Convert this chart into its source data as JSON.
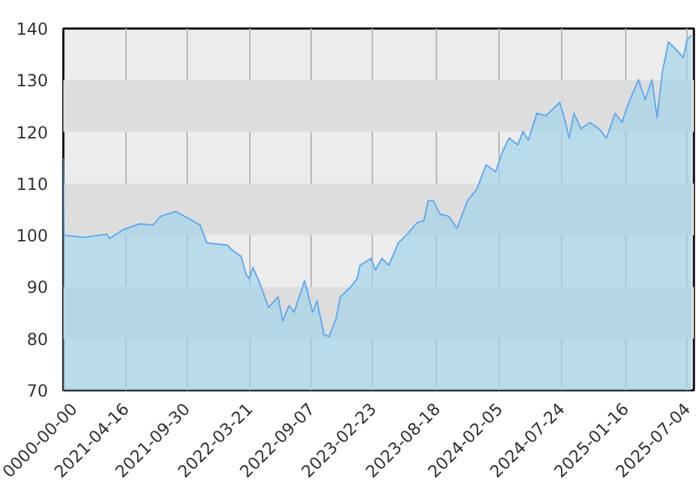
{
  "chart_data": {
    "type": "area",
    "xlim": [
      "2020-10-27",
      "2025-07-23"
    ],
    "ylim": [
      70,
      140
    ],
    "yticks": [
      70,
      80,
      90,
      100,
      110,
      120,
      130,
      140
    ],
    "xticks": [
      {
        "value": "2020-10-27",
        "label": "0000-00-00"
      },
      {
        "value": "2021-04-16",
        "label": "2021-04-16"
      },
      {
        "value": "2021-09-30",
        "label": "2021-09-30"
      },
      {
        "value": "2022-03-21",
        "label": "2022-03-21"
      },
      {
        "value": "2022-09-07",
        "label": "2022-09-07"
      },
      {
        "value": "2023-02-23",
        "label": "2023-02-23"
      },
      {
        "value": "2023-08-18",
        "label": "2023-08-18"
      },
      {
        "value": "2024-02-05",
        "label": "2024-02-05"
      },
      {
        "value": "2024-07-24",
        "label": "2024-07-24"
      },
      {
        "value": "2025-01-16",
        "label": "2025-01-16"
      },
      {
        "value": "2025-07-04",
        "label": "2025-07-04"
      }
    ],
    "grid": "x",
    "bands": [
      {
        "axis": "y",
        "from": 120,
        "to": 130,
        "color": "#dddddd"
      },
      {
        "axis": "y",
        "from": 100,
        "to": 110,
        "color": "#dddddd"
      },
      {
        "axis": "y",
        "from": 80,
        "to": 90,
        "color": "#dddddd"
      }
    ],
    "series": [
      {
        "color": "#5ba8f0",
        "x": [
          "2020-10-27",
          "2020-10-29",
          "2020-12-22",
          "2021-02-24",
          "2021-03-03",
          "2021-04-09",
          "2021-05-24",
          "2021-06-30",
          "2021-07-21",
          "2021-08-31",
          "2021-10-04",
          "2021-11-06",
          "2021-11-25",
          "2022-01-20",
          "2022-02-01",
          "2022-02-27",
          "2022-03-12",
          "2022-03-21",
          "2022-03-31",
          "2022-04-19",
          "2022-05-13",
          "2022-06-08",
          "2022-06-21",
          "2022-07-08",
          "2022-07-22",
          "2022-08-20",
          "2022-09-11",
          "2022-09-23",
          "2022-10-12",
          "2022-10-26",
          "2022-11-14",
          "2022-11-26",
          "2022-12-23",
          "2023-01-11",
          "2023-01-19",
          "2023-02-18",
          "2023-03-02",
          "2023-03-20",
          "2023-04-08",
          "2023-05-04",
          "2023-05-28",
          "2023-06-24",
          "2023-07-13",
          "2023-07-25",
          "2023-08-08",
          "2023-08-26",
          "2023-09-19",
          "2023-10-12",
          "2023-11-10",
          "2023-12-05",
          "2023-12-31",
          "2024-01-26",
          "2024-02-14",
          "2024-03-03",
          "2024-03-27",
          "2024-04-10",
          "2024-04-25",
          "2024-05-18",
          "2024-06-12",
          "2024-07-08",
          "2024-07-20",
          "2024-08-03",
          "2024-08-15",
          "2024-08-28",
          "2024-09-16",
          "2024-10-10",
          "2024-11-05",
          "2024-11-25",
          "2024-12-19",
          "2025-01-07",
          "2025-01-21",
          "2025-02-21",
          "2025-03-11",
          "2025-03-30",
          "2025-04-13",
          "2025-04-27",
          "2025-05-14",
          "2025-06-02",
          "2025-06-24",
          "2025-07-04",
          "2025-07-16"
        ],
        "values": [
          115,
          100,
          99.6,
          100.2,
          99.4,
          101.1,
          102.2,
          102,
          103.7,
          104.6,
          103.3,
          102,
          98.5,
          98.1,
          97.2,
          95.9,
          92.5,
          91.6,
          93.8,
          90.7,
          86.0,
          88.1,
          83.4,
          86.4,
          85.1,
          91.2,
          85.1,
          87.3,
          80.8,
          80.4,
          83.8,
          88.1,
          89.9,
          91.6,
          94.2,
          95.5,
          93.3,
          95.5,
          94.2,
          98.5,
          100.2,
          102.4,
          102.8,
          106.7,
          106.7,
          104.1,
          103.7,
          101.3,
          106.7,
          108.9,
          113.6,
          112.3,
          116.2,
          118.8,
          117.5,
          120.1,
          118.4,
          123.6,
          123.1,
          124.9,
          125.7,
          122.3,
          118.8,
          123.6,
          120.6,
          121.8,
          120.6,
          118.8,
          123.6,
          121.8,
          124.9,
          130.1,
          126.2,
          130.1,
          122.7,
          131.4,
          137.4,
          136.1,
          134.4,
          137.8,
          138.7
        ]
      }
    ]
  }
}
